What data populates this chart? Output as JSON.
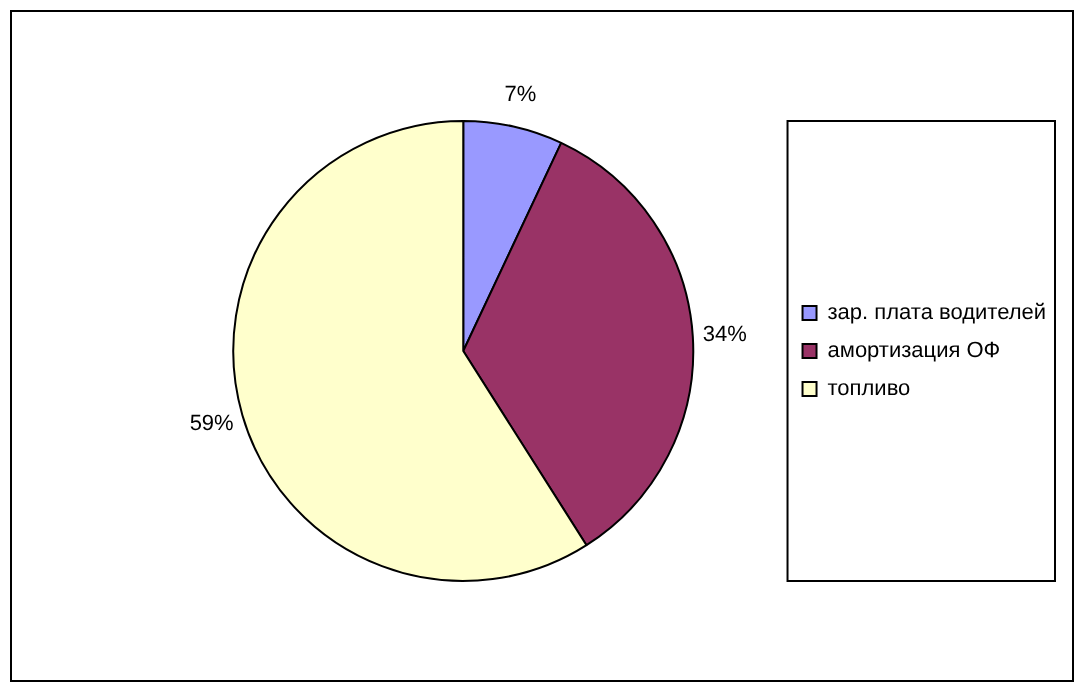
{
  "chart_data": {
    "type": "pie",
    "categories": [
      "зар. плата водителей",
      "амортизация ОФ",
      "топливо"
    ],
    "values": [
      7,
      34,
      59
    ],
    "colors": [
      "#9999ff",
      "#993366",
      "#ffffcc"
    ],
    "value_labels": [
      "7%",
      "34%",
      "59%"
    ],
    "legend": "right"
  }
}
